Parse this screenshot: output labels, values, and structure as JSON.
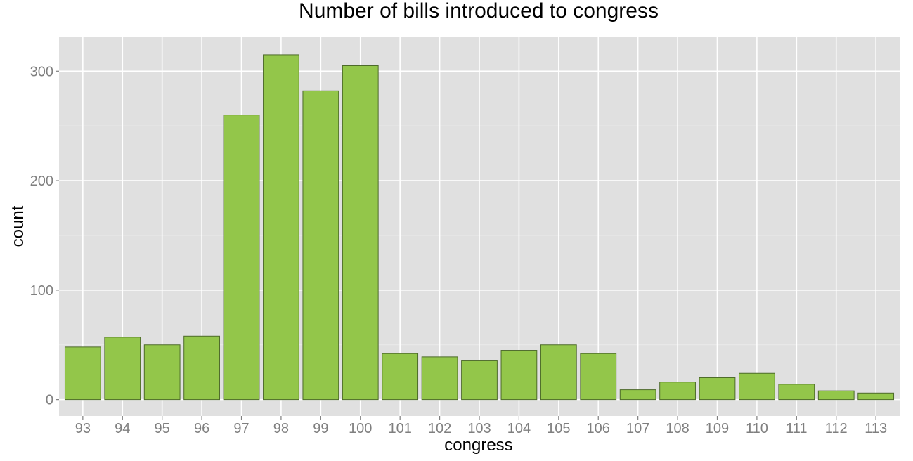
{
  "chart_data": {
    "type": "bar",
    "title": "Number of bills introduced to congress",
    "xlabel": "congress",
    "ylabel": "count",
    "categories": [
      "93",
      "94",
      "95",
      "96",
      "97",
      "98",
      "99",
      "100",
      "101",
      "102",
      "103",
      "104",
      "105",
      "106",
      "107",
      "108",
      "109",
      "110",
      "111",
      "112",
      "113"
    ],
    "values": [
      48,
      57,
      50,
      58,
      260,
      315,
      282,
      305,
      42,
      39,
      36,
      45,
      50,
      42,
      9,
      16,
      20,
      24,
      14,
      8,
      6
    ],
    "ylim": [
      -15,
      331
    ],
    "yticks": [
      0,
      100,
      200,
      300
    ],
    "grid": true,
    "colors": {
      "panel_background": "#e0e0e0",
      "grid_major": "#ffffff",
      "grid_minor": "#eaeaea",
      "bar_fill": "#93c64a",
      "bar_stroke": "#4d6a2a"
    }
  }
}
